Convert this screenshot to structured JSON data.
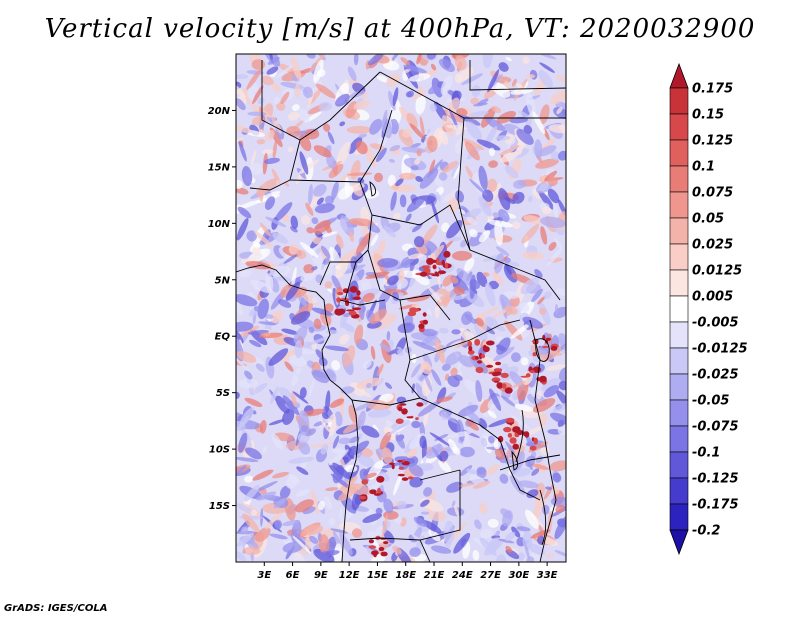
{
  "title": "Vertical velocity [m/s] at 400hPa, VT: 2020032900",
  "credit": "GrADS: IGES/COLA",
  "map": {
    "lon_range": [
      0,
      35
    ],
    "lat_range": [
      -20,
      25
    ],
    "lat_ticks": [
      {
        "value": 20,
        "label": "20N"
      },
      {
        "value": 15,
        "label": "15N"
      },
      {
        "value": 10,
        "label": "10N"
      },
      {
        "value": 5,
        "label": "5N"
      },
      {
        "value": 0,
        "label": "EQ"
      },
      {
        "value": -5,
        "label": "5S"
      },
      {
        "value": -10,
        "label": "10S"
      },
      {
        "value": -15,
        "label": "15S"
      }
    ],
    "lon_ticks": [
      {
        "value": 3,
        "label": "3E"
      },
      {
        "value": 6,
        "label": "6E"
      },
      {
        "value": 9,
        "label": "9E"
      },
      {
        "value": 12,
        "label": "12E"
      },
      {
        "value": 15,
        "label": "15E"
      },
      {
        "value": 18,
        "label": "18E"
      },
      {
        "value": 21,
        "label": "21E"
      },
      {
        "value": 24,
        "label": "24E"
      },
      {
        "value": 27,
        "label": "27E"
      },
      {
        "value": 30,
        "label": "30E"
      },
      {
        "value": 33,
        "label": "33E"
      }
    ]
  },
  "colorbar": {
    "levels": [
      "0.175",
      "0.15",
      "0.125",
      "0.1",
      "0.075",
      "0.05",
      "0.025",
      "0.0125",
      "0.005",
      "-0.005",
      "-0.0125",
      "-0.025",
      "-0.05",
      "-0.075",
      "-0.1",
      "-0.125",
      "-0.175",
      "-0.2"
    ],
    "colors": [
      "#b2182b",
      "#c8333a",
      "#d6484b",
      "#e0605e",
      "#e87c77",
      "#ef978f",
      "#f4b3aa",
      "#f8cec6",
      "#fbe6e2",
      "#ffffff",
      "#e4e3fb",
      "#cac8f7",
      "#b0acf2",
      "#9590ec",
      "#7b74e4",
      "#6058d9",
      "#453ccd",
      "#2c22bd",
      "#1c10a8"
    ]
  }
}
